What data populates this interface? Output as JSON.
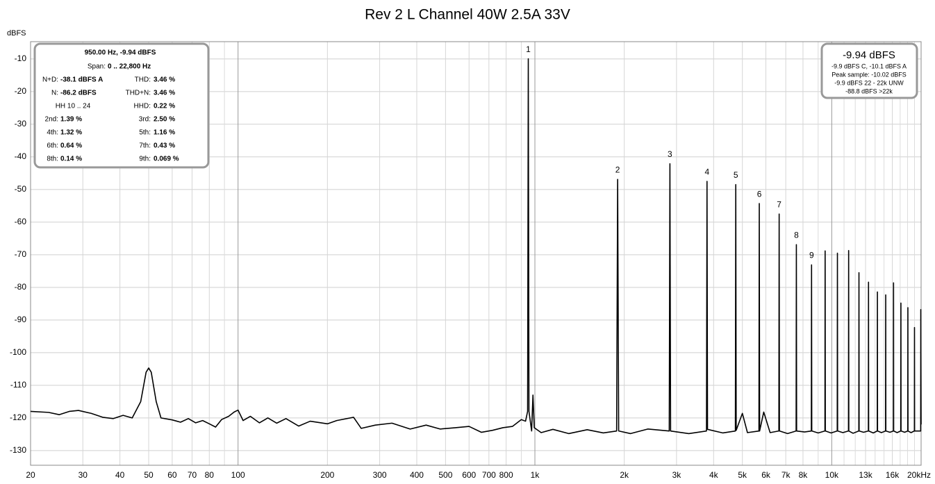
{
  "chart_data": {
    "type": "line",
    "title": "Rev 2 L Channel 40W 2.5A 33V",
    "y_label": "dBFS",
    "xscale": "log",
    "grid": true,
    "xlim": [
      20,
      20000
    ],
    "ylim": [
      -134.5,
      -4.7
    ],
    "xticks": [
      20,
      30,
      40,
      50,
      60,
      70,
      80,
      100,
      200,
      300,
      400,
      500,
      600,
      700,
      800,
      {
        "value": 1000,
        "label": "1k"
      },
      {
        "value": 2000,
        "label": "2k"
      },
      {
        "value": 3000,
        "label": "3k"
      },
      {
        "value": 4000,
        "label": "4k"
      },
      {
        "value": 5000,
        "label": "5k"
      },
      {
        "value": 6000,
        "label": "6k"
      },
      {
        "value": 7000,
        "label": "7k"
      },
      {
        "value": 8000,
        "label": "8k"
      },
      {
        "value": 10000,
        "label": "10k"
      },
      {
        "value": 13000,
        "label": "13k"
      },
      {
        "value": 16000,
        "label": "16k"
      },
      {
        "value": 20000,
        "label": "20kHz"
      }
    ],
    "x_minor_grid": [
      90,
      900,
      9000,
      11000,
      12000,
      14000,
      15000,
      17000,
      18000,
      19000
    ],
    "yticks": [
      -10,
      -20,
      -30,
      -40,
      -50,
      -60,
      -70,
      -80,
      -90,
      -100,
      -110,
      -120,
      -130
    ],
    "series": [
      {
        "color": "#000000",
        "x": [
          20,
          23,
          25,
          27,
          29,
          32,
          35,
          38,
          41,
          44,
          47,
          49,
          50,
          51,
          53,
          55,
          60,
          64,
          68,
          72,
          76,
          80,
          84,
          88,
          93,
          97,
          100,
          104,
          110,
          118,
          126,
          135,
          145,
          160,
          175,
          200,
          215,
          245,
          260,
          290,
          330,
          380,
          430,
          480,
          540,
          600,
          660,
          720,
          780,
          840,
          900,
          930,
          945,
          950,
          955,
          975,
          985,
          995,
          1050,
          1150,
          1300,
          1500,
          1700,
          1885,
          1900,
          1915,
          2100,
          2400,
          2835,
          2850,
          2865,
          3300,
          3785,
          3800,
          3815,
          4300,
          4735,
          4750,
          4765,
          5000,
          5200,
          5685,
          5700,
          5715,
          5900,
          6200,
          6635,
          6650,
          6665,
          7100,
          7585,
          7600,
          7615,
          8100,
          8535,
          8550,
          8565,
          9000,
          9485,
          9500,
          9515,
          9950,
          10435,
          10450,
          10465,
          10900,
          11385,
          11400,
          11415,
          11800,
          12335,
          12350,
          12365,
          12800,
          13285,
          13300,
          13315,
          13800,
          14235,
          14250,
          14265,
          14700,
          15185,
          15200,
          15215,
          15700,
          16135,
          16150,
          16165,
          16600,
          17085,
          17100,
          17115,
          17600,
          18035,
          18050,
          18065,
          18500,
          18985,
          19000,
          19015,
          19935,
          19950,
          20000
        ],
        "values": [
          -118,
          -118.3,
          -119,
          -118,
          -117.7,
          -118.6,
          -119.8,
          -120.2,
          -119.2,
          -120,
          -115,
          -106,
          -104.7,
          -106,
          -115,
          -120,
          -120.6,
          -121.3,
          -120.2,
          -121.5,
          -120.8,
          -121.8,
          -122.8,
          -120.5,
          -119.5,
          -118.2,
          -117.6,
          -120.8,
          -119.5,
          -121.5,
          -120,
          -121.6,
          -120.2,
          -122.5,
          -121,
          -121.8,
          -120.8,
          -119.8,
          -123.2,
          -122.2,
          -121.6,
          -123.4,
          -122.2,
          -123.4,
          -123,
          -122.6,
          -124.4,
          -123.8,
          -123,
          -122.6,
          -120.5,
          -121,
          -118,
          -9.94,
          -118,
          -124,
          -113,
          -123,
          -124.5,
          -123.5,
          -124.8,
          -123.6,
          -124.6,
          -124,
          -46.9,
          -124,
          -124.8,
          -123.4,
          -124,
          -42.1,
          -124,
          -124.8,
          -124,
          -47.5,
          -123.5,
          -124.6,
          -124,
          -48.5,
          -123.8,
          -118.6,
          -124.5,
          -124,
          -54.3,
          -124,
          -118.2,
          -124.5,
          -124,
          -57.5,
          -124,
          -124.8,
          -124,
          -66.9,
          -124,
          -124.3,
          -124,
          -73.1,
          -124,
          -124.6,
          -124,
          -68.8,
          -124,
          -124.6,
          -124,
          -69.5,
          -124,
          -124.5,
          -124,
          -68.7,
          -124,
          -124.7,
          -124,
          -75.5,
          -124,
          -124.4,
          -124,
          -78.4,
          -124,
          -124.6,
          -124,
          -81.4,
          -124,
          -124.5,
          -124,
          -82.3,
          -124,
          -124.4,
          -124,
          -78.6,
          -124,
          -124.5,
          -124,
          -84.8,
          -124,
          -124.4,
          -124,
          -86.2,
          -124,
          -124.5,
          -124,
          -92.3,
          -124,
          -124,
          -86.8,
          -122
        ]
      }
    ],
    "annotations": [
      {
        "text": "1",
        "x": 950,
        "y": -9.94
      },
      {
        "text": "2",
        "x": 1900,
        "y": -46.9
      },
      {
        "text": "3",
        "x": 2850,
        "y": -42.1
      },
      {
        "text": "4",
        "x": 3800,
        "y": -47.5
      },
      {
        "text": "5",
        "x": 4750,
        "y": -48.5
      },
      {
        "text": "6",
        "x": 5700,
        "y": -54.3
      },
      {
        "text": "7",
        "x": 6650,
        "y": -57.5
      },
      {
        "text": "8",
        "x": 7600,
        "y": -66.9
      },
      {
        "text": "9",
        "x": 8550,
        "y": -73.1
      }
    ],
    "info_box": {
      "header": "950.00 Hz, -9.94 dBFS",
      "span_label": "Span:",
      "span_value": "0 .. 22,800 Hz",
      "rows": [
        [
          "N+D:",
          "-38.1 dBFS A",
          "THD:",
          "3.46 %"
        ],
        [
          "N:",
          "-86.2 dBFS",
          "THD+N:",
          "3.46 %"
        ],
        [
          "HH 10 .. 24",
          "",
          "HHD:",
          "0.22 %"
        ],
        [
          "2nd:",
          "1.39 %",
          "3rd:",
          "2.50 %"
        ],
        [
          "4th:",
          "1.32 %",
          "5th:",
          "1.16 %"
        ],
        [
          "6th:",
          "0.64 %",
          "7th:",
          "0.43 %"
        ],
        [
          "8th:",
          "0.14 %",
          "9th:",
          "0.069 %"
        ]
      ]
    },
    "level_box": {
      "value": "-9.94 dBFS",
      "lines": [
        "-9.9 dBFS C, -10.1 dBFS A",
        "Peak sample: -10.02 dBFS",
        "-9.9 dBFS 22 - 22k UNW",
        "-88.8 dBFS >22k"
      ]
    }
  }
}
